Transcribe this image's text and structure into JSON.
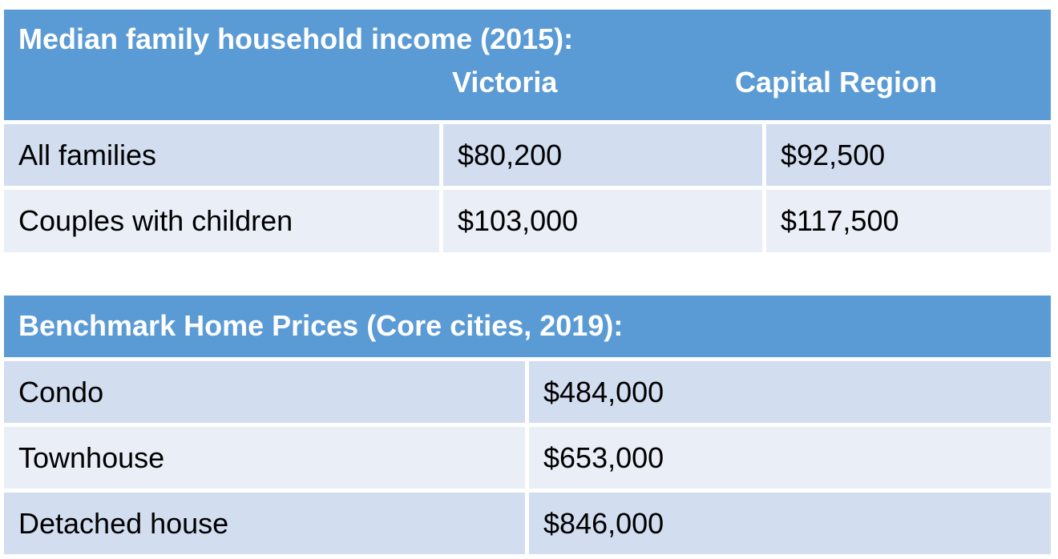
{
  "income": {
    "title": "Median family household income (2015):",
    "columns": [
      "Victoria",
      "Capital Region"
    ],
    "rows": [
      {
        "label": "All families",
        "victoria": "$80,200",
        "capital": "$92,500"
      },
      {
        "label": "Couples with children",
        "victoria": "$103,000",
        "capital": "$117,500"
      }
    ]
  },
  "prices": {
    "title": "Benchmark Home Prices (Core cities, 2019):",
    "rows": [
      {
        "label": "Condo",
        "value": "$484,000"
      },
      {
        "label": "Townhouse",
        "value": "$653,000"
      },
      {
        "label": "Detached house",
        "value": "$846,000"
      }
    ]
  },
  "colors": {
    "header": "#5b9bd5",
    "row_odd": "#d2ddef",
    "row_even": "#e9eef7"
  }
}
